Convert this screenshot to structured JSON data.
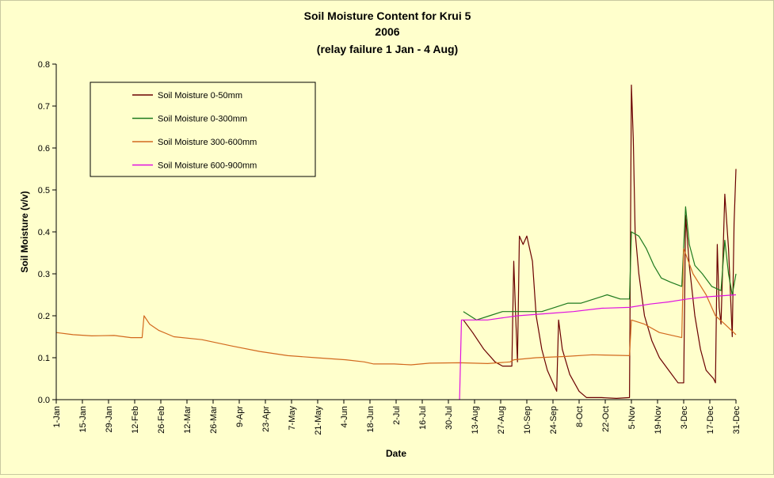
{
  "chart_data": {
    "type": "line",
    "title": "Soil Moisture Content for Krui 5",
    "subtitle": "2006",
    "note": "(relay failure 1 Jan - 4 Aug)",
    "xlabel": "Date",
    "ylabel": "Soil Moisture (v/v)",
    "ylim": [
      0,
      0.8
    ],
    "yticks": [
      "0.0",
      "0.1",
      "0.2",
      "0.3",
      "0.4",
      "0.5",
      "0.6",
      "0.7",
      "0.8"
    ],
    "xlim": [
      "2006-01-01",
      "2006-12-31"
    ],
    "xticks": [
      "1-Jan",
      "15-Jan",
      "29-Jan",
      "12-Feb",
      "26-Feb",
      "12-Mar",
      "26-Mar",
      "9-Apr",
      "23-Apr",
      "7-May",
      "21-May",
      "4-Jun",
      "18-Jun",
      "2-Jul",
      "16-Jul",
      "30-Jul",
      "13-Aug",
      "27-Aug",
      "10-Sep",
      "24-Sep",
      "8-Oct",
      "22-Oct",
      "5-Nov",
      "19-Nov",
      "3-Dec",
      "17-Dec",
      "31-Dec"
    ],
    "grid": false,
    "legend_position": "top-left",
    "series": [
      {
        "name": "Soil Moisture 0-50mm",
        "color": "#6b0000",
        "points": [
          [
            "2006-08-07",
            0.19
          ],
          [
            "2006-08-12",
            0.16
          ],
          [
            "2006-08-18",
            0.12
          ],
          [
            "2006-08-24",
            0.09
          ],
          [
            "2006-08-28",
            0.08
          ],
          [
            "2006-09-02",
            0.08
          ],
          [
            "2006-09-03",
            0.33
          ],
          [
            "2006-09-04",
            0.2
          ],
          [
            "2006-09-05",
            0.09
          ],
          [
            "2006-09-06",
            0.39
          ],
          [
            "2006-09-08",
            0.37
          ],
          [
            "2006-09-10",
            0.39
          ],
          [
            "2006-09-13",
            0.33
          ],
          [
            "2006-09-15",
            0.2
          ],
          [
            "2006-09-18",
            0.12
          ],
          [
            "2006-09-21",
            0.07
          ],
          [
            "2006-09-23",
            0.05
          ],
          [
            "2006-09-26",
            0.02
          ],
          [
            "2006-09-27",
            0.19
          ],
          [
            "2006-09-29",
            0.12
          ],
          [
            "2006-10-03",
            0.06
          ],
          [
            "2006-10-08",
            0.02
          ],
          [
            "2006-10-12",
            0.005
          ],
          [
            "2006-10-20",
            0.005
          ],
          [
            "2006-10-28",
            0.003
          ],
          [
            "2006-11-04",
            0.005
          ],
          [
            "2006-11-05",
            0.75
          ],
          [
            "2006-11-06",
            0.62
          ],
          [
            "2006-11-07",
            0.4
          ],
          [
            "2006-11-09",
            0.3
          ],
          [
            "2006-11-12",
            0.2
          ],
          [
            "2006-11-16",
            0.14
          ],
          [
            "2006-11-20",
            0.1
          ],
          [
            "2006-11-25",
            0.07
          ],
          [
            "2006-11-30",
            0.04
          ],
          [
            "2006-12-03",
            0.04
          ],
          [
            "2006-12-04",
            0.44
          ],
          [
            "2006-12-06",
            0.32
          ],
          [
            "2006-12-09",
            0.2
          ],
          [
            "2006-12-12",
            0.12
          ],
          [
            "2006-12-15",
            0.07
          ],
          [
            "2006-12-19",
            0.05
          ],
          [
            "2006-12-20",
            0.04
          ],
          [
            "2006-12-21",
            0.37
          ],
          [
            "2006-12-22",
            0.22
          ],
          [
            "2006-12-23",
            0.18
          ],
          [
            "2006-12-25",
            0.49
          ],
          [
            "2006-12-27",
            0.36
          ],
          [
            "2006-12-29",
            0.15
          ],
          [
            "2006-12-30",
            0.42
          ],
          [
            "2006-12-31",
            0.55
          ]
        ]
      },
      {
        "name": "Soil Moisture 0-300mm",
        "color": "#1e7a1e",
        "points": [
          [
            "2006-08-07",
            0.21
          ],
          [
            "2006-08-14",
            0.19
          ],
          [
            "2006-08-21",
            0.2
          ],
          [
            "2006-08-28",
            0.21
          ],
          [
            "2006-09-04",
            0.21
          ],
          [
            "2006-09-11",
            0.21
          ],
          [
            "2006-09-18",
            0.21
          ],
          [
            "2006-09-25",
            0.22
          ],
          [
            "2006-10-02",
            0.23
          ],
          [
            "2006-10-09",
            0.23
          ],
          [
            "2006-10-16",
            0.24
          ],
          [
            "2006-10-23",
            0.25
          ],
          [
            "2006-10-30",
            0.24
          ],
          [
            "2006-11-04",
            0.24
          ],
          [
            "2006-11-05",
            0.4
          ],
          [
            "2006-11-09",
            0.39
          ],
          [
            "2006-11-13",
            0.36
          ],
          [
            "2006-11-17",
            0.32
          ],
          [
            "2006-11-21",
            0.29
          ],
          [
            "2006-11-26",
            0.28
          ],
          [
            "2006-12-02",
            0.27
          ],
          [
            "2006-12-04",
            0.46
          ],
          [
            "2006-12-06",
            0.37
          ],
          [
            "2006-12-09",
            0.32
          ],
          [
            "2006-12-13",
            0.3
          ],
          [
            "2006-12-18",
            0.27
          ],
          [
            "2006-12-23",
            0.26
          ],
          [
            "2006-12-25",
            0.38
          ],
          [
            "2006-12-27",
            0.3
          ],
          [
            "2006-12-29",
            0.25
          ],
          [
            "2006-12-31",
            0.3
          ]
        ]
      },
      {
        "name": "Soil Moisture 300-600mm",
        "color": "#d2691e",
        "points": [
          [
            "2006-01-01",
            0.16
          ],
          [
            "2006-01-10",
            0.155
          ],
          [
            "2006-01-20",
            0.152
          ],
          [
            "2006-02-01",
            0.153
          ],
          [
            "2006-02-10",
            0.148
          ],
          [
            "2006-02-16",
            0.148
          ],
          [
            "2006-02-17",
            0.2
          ],
          [
            "2006-02-20",
            0.18
          ],
          [
            "2006-02-25",
            0.165
          ],
          [
            "2006-03-05",
            0.15
          ],
          [
            "2006-03-20",
            0.143
          ],
          [
            "2006-04-05",
            0.128
          ],
          [
            "2006-04-20",
            0.115
          ],
          [
            "2006-05-05",
            0.105
          ],
          [
            "2006-05-20",
            0.1
          ],
          [
            "2006-06-05",
            0.095
          ],
          [
            "2006-06-15",
            0.09
          ],
          [
            "2006-06-20",
            0.085
          ],
          [
            "2006-07-01",
            0.085
          ],
          [
            "2006-07-10",
            0.083
          ],
          [
            "2006-07-20",
            0.087
          ],
          [
            "2006-08-05",
            0.088
          ],
          [
            "2006-08-20",
            0.086
          ],
          [
            "2006-09-01",
            0.09
          ],
          [
            "2006-09-03",
            0.095
          ],
          [
            "2006-09-15",
            0.1
          ],
          [
            "2006-10-01",
            0.103
          ],
          [
            "2006-10-15",
            0.107
          ],
          [
            "2006-11-04",
            0.105
          ],
          [
            "2006-11-05",
            0.19
          ],
          [
            "2006-11-12",
            0.18
          ],
          [
            "2006-11-20",
            0.16
          ],
          [
            "2006-12-02",
            0.148
          ],
          [
            "2006-12-03",
            0.36
          ],
          [
            "2006-12-08",
            0.3
          ],
          [
            "2006-12-15",
            0.25
          ],
          [
            "2006-12-20",
            0.2
          ],
          [
            "2006-12-25",
            0.18
          ],
          [
            "2006-12-31",
            0.155
          ]
        ]
      },
      {
        "name": "Soil Moisture 600-900mm",
        "color": "#e011e0",
        "points": [
          [
            "2006-08-05",
            0.0
          ],
          [
            "2006-08-06",
            0.19
          ],
          [
            "2006-08-20",
            0.19
          ],
          [
            "2006-09-05",
            0.2
          ],
          [
            "2006-09-20",
            0.205
          ],
          [
            "2006-10-05",
            0.21
          ],
          [
            "2006-10-20",
            0.218
          ],
          [
            "2006-11-04",
            0.22
          ],
          [
            "2006-11-15",
            0.228
          ],
          [
            "2006-11-25",
            0.233
          ],
          [
            "2006-12-05",
            0.24
          ],
          [
            "2006-12-15",
            0.245
          ],
          [
            "2006-12-31",
            0.25
          ]
        ]
      }
    ]
  }
}
